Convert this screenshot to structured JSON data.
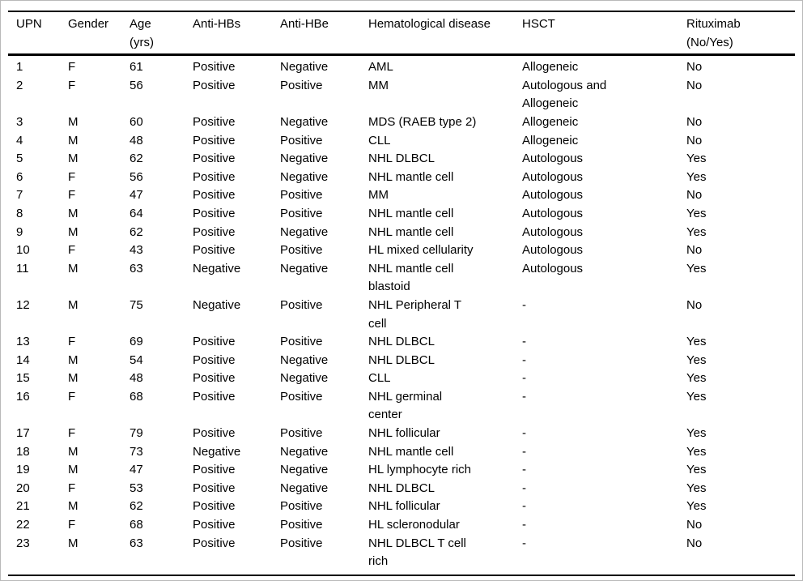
{
  "table": {
    "columns": [
      {
        "key": "upn",
        "label": "UPN"
      },
      {
        "key": "gender",
        "label": "Gender"
      },
      {
        "key": "age",
        "label": "Age\n(yrs)"
      },
      {
        "key": "anti_hbs",
        "label": "Anti-HBs"
      },
      {
        "key": "anti_hbe",
        "label": "Anti-HBe"
      },
      {
        "key": "disease",
        "label": "Hematological disease"
      },
      {
        "key": "hsct",
        "label": "HSCT"
      },
      {
        "key": "rituximab",
        "label": "Rituximab\n(No/Yes)"
      }
    ],
    "rows": [
      [
        "1",
        "F",
        "61",
        "Positive",
        "Negative",
        "AML",
        "Allogeneic",
        "No"
      ],
      [
        "2",
        "F",
        "56",
        "Positive",
        "Positive",
        "MM",
        "Autologous and\nAllogeneic",
        "No"
      ],
      [
        "3",
        "M",
        "60",
        "Positive",
        "Negative",
        "MDS (RAEB type 2)",
        "Allogeneic",
        "No"
      ],
      [
        "4",
        "M",
        "48",
        "Positive",
        "Positive",
        "CLL",
        "Allogeneic",
        "No"
      ],
      [
        "5",
        "M",
        "62",
        "Positive",
        "Negative",
        "NHL DLBCL",
        "Autologous",
        "Yes"
      ],
      [
        "6",
        "F",
        "56",
        "Positive",
        "Negative",
        "NHL mantle cell",
        "Autologous",
        "Yes"
      ],
      [
        "7",
        "F",
        "47",
        "Positive",
        "Positive",
        "MM",
        "Autologous",
        "No"
      ],
      [
        "8",
        "M",
        "64",
        "Positive",
        "Positive",
        "NHL mantle cell",
        "Autologous",
        "Yes"
      ],
      [
        "9",
        "M",
        "62",
        "Positive",
        "Negative",
        "NHL mantle cell",
        "Autologous",
        "Yes"
      ],
      [
        "10",
        "F",
        "43",
        "Positive",
        "Positive",
        "HL mixed cellularity",
        "Autologous",
        "No"
      ],
      [
        "11",
        "M",
        "63",
        "Negative",
        "Negative",
        "NHL mantle cell\nblastoid",
        "Autologous",
        "Yes"
      ],
      [
        "12",
        "M",
        "75",
        "Negative",
        "Positive",
        "NHL Peripheral T\ncell",
        "-",
        "No"
      ],
      [
        "13",
        "F",
        "69",
        "Positive",
        "Positive",
        "NHL DLBCL",
        "-",
        "Yes"
      ],
      [
        "14",
        "M",
        "54",
        "Positive",
        "Negative",
        "NHL DLBCL",
        "-",
        "Yes"
      ],
      [
        "15",
        "M",
        "48",
        "Positive",
        "Negative",
        "CLL",
        "-",
        "Yes"
      ],
      [
        "16",
        "F",
        "68",
        "Positive",
        "Positive",
        "NHL germinal\ncenter",
        "-",
        "Yes"
      ],
      [
        "17",
        "F",
        "79",
        "Positive",
        "Positive",
        "NHL follicular",
        "-",
        "Yes"
      ],
      [
        "18",
        "M",
        "73",
        "Negative",
        "Negative",
        "NHL mantle cell",
        "-",
        "Yes"
      ],
      [
        "19",
        "M",
        "47",
        "Positive",
        "Negative",
        "HL lymphocyte rich",
        "-",
        "Yes"
      ],
      [
        "20",
        "F",
        "53",
        "Positive",
        "Negative",
        "NHL DLBCL",
        "-",
        "Yes"
      ],
      [
        "21",
        "M",
        "62",
        "Positive",
        "Positive",
        "NHL follicular",
        "-",
        "Yes"
      ],
      [
        "22",
        "F",
        "68",
        "Positive",
        "Positive",
        "HL scleronodular",
        "-",
        "No"
      ],
      [
        "23",
        "M",
        "63",
        "Positive",
        "Positive",
        "NHL DLBCL T cell\nrich",
        "-",
        "No"
      ]
    ]
  },
  "colors": {
    "text": "#000000",
    "rule": "#000000",
    "frame_border": "#b9b9b9",
    "background": "#ffffff"
  }
}
